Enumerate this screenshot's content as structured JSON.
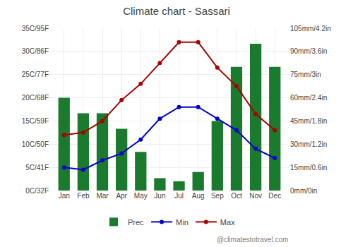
{
  "chart_data": {
    "type": "combo",
    "title": "Climate chart - Sassari",
    "categories": [
      "Jan",
      "Feb",
      "Mar",
      "Apr",
      "May",
      "Jun",
      "Jul",
      "Aug",
      "Sep",
      "Oct",
      "Nov",
      "Dec"
    ],
    "series": [
      {
        "name": "Prec",
        "type": "bar",
        "axis": "y2",
        "color": "#1a7a2e",
        "values": [
          60,
          50,
          50,
          40,
          25,
          8,
          6,
          12,
          45,
          80,
          95,
          80
        ]
      },
      {
        "name": "Min",
        "type": "line",
        "marker": "circle",
        "color": "#0000cc",
        "values": [
          5,
          4.5,
          6.5,
          8,
          11,
          15.5,
          18,
          18,
          15.5,
          13,
          9,
          7
        ]
      },
      {
        "name": "Max",
        "type": "line",
        "marker": "circle",
        "color": "#aa0000",
        "values": [
          12,
          12.5,
          15,
          19.5,
          23,
          27.5,
          32,
          32,
          26.5,
          22.5,
          16.5,
          13
        ]
      }
    ],
    "ylim": [
      0,
      35
    ],
    "yticks": [
      {
        "value": 0,
        "label": "0C/32F"
      },
      {
        "value": 5,
        "label": "5C/41F"
      },
      {
        "value": 10,
        "label": "10C/50F"
      },
      {
        "value": 15,
        "label": "15C/59F"
      },
      {
        "value": 20,
        "label": "20C/68F"
      },
      {
        "value": 25,
        "label": "25C/77F"
      },
      {
        "value": 30,
        "label": "30C/86F"
      },
      {
        "value": 35,
        "label": "35C/95F"
      }
    ],
    "y2lim": [
      0,
      105
    ],
    "y2ticks": [
      {
        "value": 0,
        "label": "0mm/0in"
      },
      {
        "value": 15,
        "label": "15mm/0.6in"
      },
      {
        "value": 30,
        "label": "30mm/1.2in"
      },
      {
        "value": 45,
        "label": "45mm/1.8in"
      },
      {
        "value": 60,
        "label": "60mm/2.4in"
      },
      {
        "value": 75,
        "label": "75mm/3in"
      },
      {
        "value": 90,
        "label": "90mm/3.6in"
      },
      {
        "value": 105,
        "label": "105mm/4.2in"
      }
    ],
    "grid": true,
    "legend": "bottom",
    "annotations": [
      "@climatestotravel.com"
    ]
  }
}
